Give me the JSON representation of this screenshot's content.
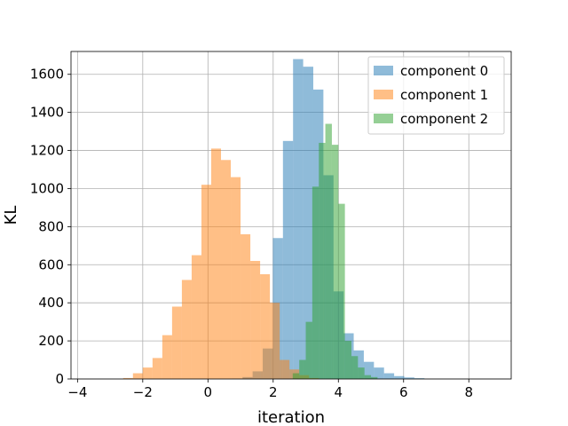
{
  "chart_data": {
    "type": "bar",
    "title": "",
    "xlabel": "iteration",
    "ylabel": "KL",
    "xlim": [
      -4.2,
      9.3
    ],
    "ylim": [
      0,
      1720
    ],
    "xticks": [
      -4,
      -2,
      0,
      2,
      4,
      6,
      8
    ],
    "yticks": [
      0,
      200,
      400,
      600,
      800,
      1000,
      1200,
      1400,
      1600
    ],
    "grid": true,
    "legend_position": "top-right",
    "series": [
      {
        "name": "component 0",
        "color": "#1f77b4",
        "opacity": 0.5,
        "bin_edges": [
          0.75,
          1.06,
          1.37,
          1.68,
          1.99,
          2.3,
          2.61,
          2.92,
          3.23,
          3.54,
          3.85,
          4.16,
          4.47,
          4.78,
          5.09,
          5.4,
          5.71,
          6.02,
          6.33,
          6.64
        ],
        "values": [
          2,
          10,
          40,
          160,
          740,
          1250,
          1680,
          1640,
          1520,
          1070,
          460,
          240,
          150,
          90,
          60,
          30,
          15,
          8,
          4
        ]
      },
      {
        "name": "component 1",
        "color": "#ff7f0e",
        "opacity": 0.5,
        "bin_edges": [
          -2.6,
          -2.3,
          -2.0,
          -1.7,
          -1.4,
          -1.1,
          -0.8,
          -0.5,
          -0.2,
          0.1,
          0.4,
          0.7,
          1.0,
          1.3,
          1.6,
          1.9,
          2.2,
          2.5,
          2.8,
          3.1,
          3.4
        ],
        "values": [
          5,
          30,
          60,
          110,
          230,
          380,
          520,
          650,
          1020,
          1210,
          1150,
          1060,
          760,
          620,
          550,
          400,
          100,
          50,
          20,
          5
        ]
      },
      {
        "name": "component 2",
        "color": "#2ca02c",
        "opacity": 0.5,
        "bin_edges": [
          2.6,
          2.8,
          3.0,
          3.2,
          3.4,
          3.6,
          3.8,
          4.0,
          4.2,
          4.4,
          4.6,
          4.8,
          5.0,
          5.2
        ],
        "values": [
          30,
          100,
          300,
          1010,
          1240,
          1340,
          1230,
          920,
          200,
          120,
          60,
          20,
          10
        ]
      }
    ]
  }
}
